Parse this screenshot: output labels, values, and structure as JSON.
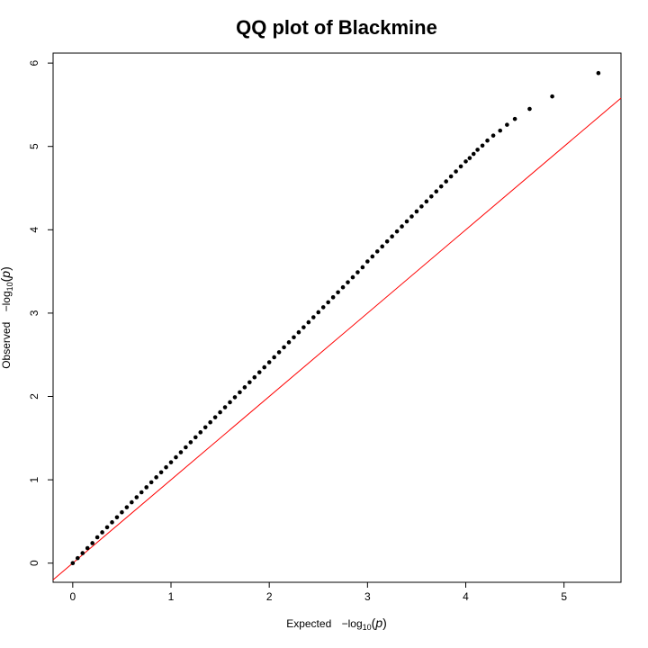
{
  "chart_data": {
    "type": "scatter",
    "title": "QQ plot of Blackmine",
    "xlabel": {
      "prefix": "Expected",
      "math": "−log",
      "subscript": "10",
      "paren_open": "(",
      "variable": "p",
      "paren_close": ")"
    },
    "ylabel": {
      "prefix": "Observed",
      "math": "−log",
      "subscript": "10",
      "paren_open": "(",
      "variable": "p",
      "paren_close": ")"
    },
    "xlim": [
      -0.2,
      5.58
    ],
    "ylim": [
      -0.23,
      6.12
    ],
    "x_ticks": [
      "0",
      "1",
      "2",
      "3",
      "4",
      "5"
    ],
    "y_ticks": [
      "0",
      "1",
      "2",
      "3",
      "4",
      "5",
      "6"
    ],
    "grid": false,
    "reference_line": {
      "slope": 1,
      "intercept": 0,
      "color": "#ff0000"
    },
    "point_color": "#000000",
    "series": [
      {
        "x": [
          0.0,
          0.05,
          0.1,
          0.15,
          0.2,
          0.25,
          0.3,
          0.35,
          0.4,
          0.45,
          0.5,
          0.55,
          0.6,
          0.65,
          0.7,
          0.75,
          0.8,
          0.85,
          0.9,
          0.95,
          1.0,
          1.05,
          1.1,
          1.15,
          1.2,
          1.25,
          1.3,
          1.35,
          1.4,
          1.45,
          1.5,
          1.55,
          1.6,
          1.65,
          1.7,
          1.75,
          1.8,
          1.85,
          1.9,
          1.95,
          2.0,
          2.05,
          2.1,
          2.15,
          2.2,
          2.25,
          2.3,
          2.35,
          2.4,
          2.45,
          2.5,
          2.55,
          2.6,
          2.65,
          2.7,
          2.75,
          2.8,
          2.85,
          2.9,
          2.95,
          3.0,
          3.05,
          3.1,
          3.15,
          3.2,
          3.25,
          3.3,
          3.35,
          3.4,
          3.45,
          3.5,
          3.55,
          3.6,
          3.65,
          3.7,
          3.75,
          3.8,
          3.85,
          3.9,
          3.95,
          4.0,
          4.04,
          4.08,
          4.12,
          4.17,
          4.22,
          4.28,
          4.35,
          4.42,
          4.5,
          4.65,
          4.88,
          5.35
        ],
        "y": [
          0.0,
          0.06,
          0.12,
          0.18,
          0.24,
          0.31,
          0.37,
          0.43,
          0.49,
          0.55,
          0.61,
          0.67,
          0.73,
          0.79,
          0.85,
          0.91,
          0.97,
          1.03,
          1.09,
          1.15,
          1.21,
          1.27,
          1.33,
          1.39,
          1.45,
          1.51,
          1.57,
          1.63,
          1.69,
          1.75,
          1.81,
          1.87,
          1.93,
          1.99,
          2.05,
          2.11,
          2.17,
          2.23,
          2.29,
          2.35,
          2.41,
          2.47,
          2.53,
          2.59,
          2.65,
          2.71,
          2.77,
          2.83,
          2.89,
          2.95,
          3.01,
          3.07,
          3.13,
          3.19,
          3.25,
          3.31,
          3.37,
          3.43,
          3.49,
          3.55,
          3.62,
          3.68,
          3.74,
          3.8,
          3.86,
          3.92,
          3.98,
          4.04,
          4.1,
          4.16,
          4.22,
          4.28,
          4.34,
          4.4,
          4.46,
          4.52,
          4.58,
          4.64,
          4.7,
          4.76,
          4.82,
          4.86,
          4.91,
          4.96,
          5.01,
          5.07,
          5.13,
          5.19,
          5.26,
          5.33,
          5.45,
          5.6,
          5.88
        ]
      }
    ]
  }
}
